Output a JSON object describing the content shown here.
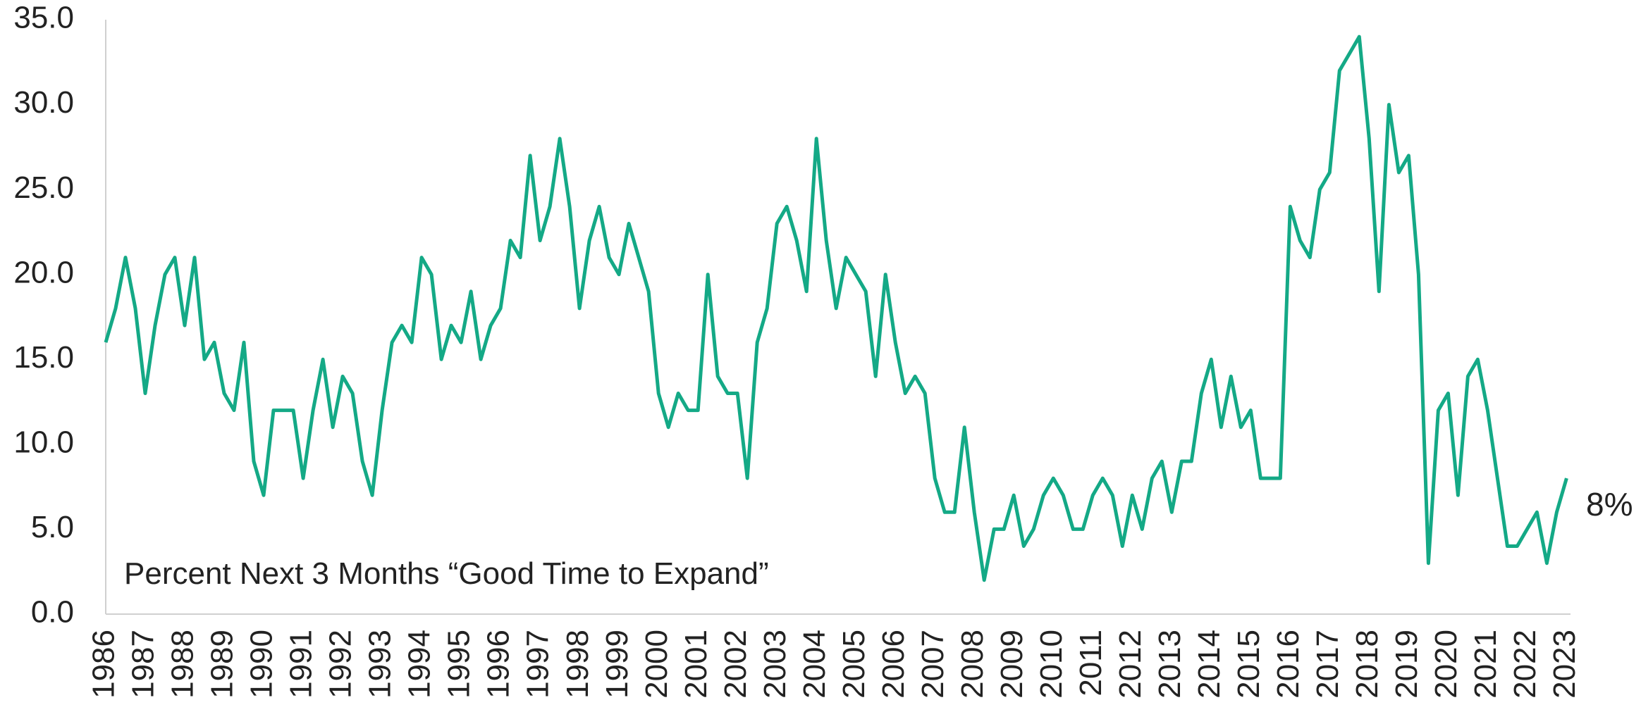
{
  "chart_data": {
    "type": "line",
    "annotation": "8%",
    "x": [
      1986,
      1986.25,
      1986.5,
      1986.75,
      1987,
      1987.25,
      1987.5,
      1987.75,
      1988,
      1988.25,
      1988.5,
      1988.75,
      1989,
      1989.25,
      1989.5,
      1989.75,
      1990,
      1990.25,
      1990.5,
      1990.75,
      1991,
      1991.25,
      1991.5,
      1991.75,
      1992,
      1992.25,
      1992.5,
      1992.75,
      1993,
      1993.25,
      1993.5,
      1993.75,
      1994,
      1994.25,
      1994.5,
      1994.75,
      1995,
      1995.25,
      1995.5,
      1995.75,
      1996,
      1996.25,
      1996.5,
      1996.75,
      1997,
      1997.25,
      1997.5,
      1997.75,
      1998,
      1998.25,
      1998.5,
      1998.75,
      1999,
      1999.25,
      1999.5,
      1999.75,
      2000,
      2000.25,
      2000.5,
      2000.75,
      2001,
      2001.25,
      2001.5,
      2001.75,
      2002,
      2002.25,
      2002.5,
      2002.75,
      2003,
      2003.25,
      2003.5,
      2003.75,
      2004,
      2004.25,
      2004.5,
      2004.75,
      2005,
      2005.25,
      2005.5,
      2005.75,
      2006,
      2006.25,
      2006.5,
      2006.75,
      2007,
      2007.25,
      2007.5,
      2007.75,
      2008,
      2008.25,
      2008.5,
      2008.75,
      2009,
      2009.25,
      2009.5,
      2009.75,
      2010,
      2010.25,
      2010.5,
      2010.75,
      2011,
      2011.25,
      2011.5,
      2011.75,
      2012,
      2012.25,
      2012.5,
      2012.75,
      2013,
      2013.25,
      2013.5,
      2013.75,
      2014,
      2014.25,
      2014.5,
      2014.75,
      2015,
      2015.25,
      2015.5,
      2015.75,
      2016,
      2016.25,
      2016.5,
      2016.75,
      2017,
      2017.25,
      2017.5,
      2017.75,
      2018,
      2018.25,
      2018.5,
      2018.75,
      2019,
      2019.25,
      2019.5,
      2019.75,
      2020,
      2020.25,
      2020.5,
      2020.75,
      2021,
      2021.25,
      2021.5,
      2021.75,
      2022,
      2022.25,
      2022.5,
      2022.75,
      2023
    ],
    "series": [
      {
        "name": "Percent Next 3 Months “Good Time to Expand”",
        "color": "#14a986",
        "values": [
          16,
          18,
          21,
          18,
          13,
          17,
          20,
          21,
          17,
          21,
          15,
          16,
          13,
          12,
          16,
          9,
          7,
          12,
          12,
          12,
          8,
          12,
          15,
          11,
          14,
          13,
          9,
          7,
          12,
          16,
          17,
          16,
          21,
          20,
          15,
          17,
          16,
          19,
          15,
          17,
          18,
          22,
          21,
          27,
          22,
          24,
          28,
          24,
          18,
          22,
          24,
          21,
          20,
          23,
          21,
          19,
          13,
          11,
          13,
          12,
          12,
          20,
          14,
          13,
          13,
          8,
          16,
          18,
          23,
          24,
          22,
          19,
          28,
          22,
          18,
          21,
          20,
          19,
          14,
          20,
          16,
          13,
          14,
          13,
          8,
          6,
          6,
          11,
          6,
          2,
          5,
          5,
          7,
          4,
          5,
          7,
          8,
          7,
          5,
          5,
          7,
          8,
          7,
          4,
          7,
          5,
          8,
          9,
          6,
          9,
          9,
          13,
          15,
          11,
          14,
          11,
          12,
          8,
          8,
          8,
          24,
          22,
          21,
          25,
          26,
          32,
          33,
          34,
          28,
          19,
          30,
          26,
          27,
          20,
          3,
          12,
          13,
          7,
          14,
          15,
          12,
          8,
          4,
          4,
          5,
          6,
          3,
          6,
          8
        ]
      }
    ],
    "xlim": [
      1986,
      2023.1
    ],
    "xticks": [
      1986,
      1987,
      1988,
      1989,
      1990,
      1991,
      1992,
      1993,
      1994,
      1995,
      1996,
      1997,
      1998,
      1999,
      2000,
      2001,
      2002,
      2003,
      2004,
      2005,
      2006,
      2007,
      2008,
      2009,
      2010,
      2011,
      2012,
      2013,
      2014,
      2015,
      2016,
      2017,
      2018,
      2019,
      2020,
      2021,
      2022,
      2023
    ],
    "ylim": [
      0,
      35
    ],
    "yticks": [
      {
        "value": 0,
        "label": "0.0"
      },
      {
        "value": 5,
        "label": "5.0"
      },
      {
        "value": 10,
        "label": "10.0"
      },
      {
        "value": 15,
        "label": "15.0"
      },
      {
        "value": 20,
        "label": "20.0"
      },
      {
        "value": 25,
        "label": "25.0"
      },
      {
        "value": 30,
        "label": "30.0"
      },
      {
        "value": 35,
        "label": "35.0"
      }
    ],
    "grid": false
  }
}
